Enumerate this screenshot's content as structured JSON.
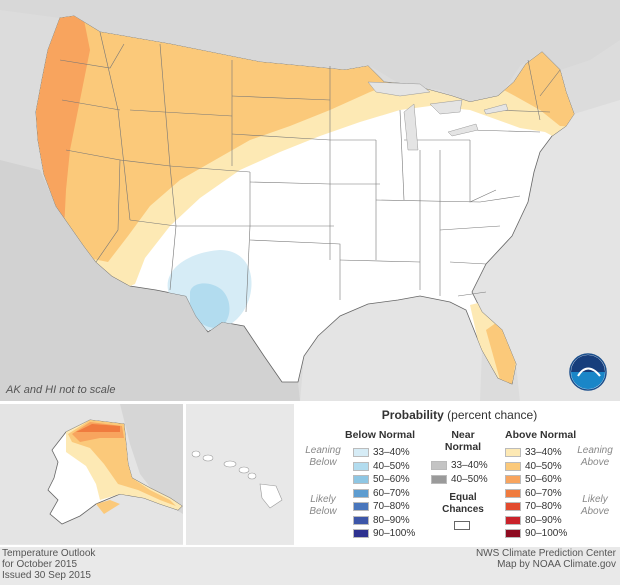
{
  "map": {
    "scale_note": "AK and HI not to scale",
    "logo_text": "NOAA"
  },
  "legend": {
    "title_bold": "Probability",
    "title_rest": " (percent chance)",
    "below": {
      "heading": "Below Normal",
      "leaning": [
        "Leaning",
        "Below"
      ],
      "likely": [
        "Likely",
        "Below"
      ],
      "bins": [
        {
          "label": "33–40%",
          "color": "#d6ecf6"
        },
        {
          "label": "40–50%",
          "color": "#b2dcef"
        },
        {
          "label": "50–60%",
          "color": "#8ec6e3"
        },
        {
          "label": "60–70%",
          "color": "#5d9cd0"
        },
        {
          "label": "70–80%",
          "color": "#4976bc"
        },
        {
          "label": "80–90%",
          "color": "#3d56a8"
        },
        {
          "label": "90–100%",
          "color": "#2e3290"
        }
      ]
    },
    "near": {
      "heading": [
        "Near",
        "Normal"
      ],
      "bins": [
        {
          "label": "33–40%",
          "color": "#c4c4c4"
        },
        {
          "label": "40–50%",
          "color": "#9a9a9a"
        }
      ]
    },
    "equal_chances": [
      "Equal",
      "Chances"
    ],
    "above": {
      "heading": "Above Normal",
      "leaning": [
        "Leaning",
        "Above"
      ],
      "likely": [
        "Likely",
        "Above"
      ],
      "bins": [
        {
          "label": "33–40%",
          "color": "#fde9b4"
        },
        {
          "label": "40–50%",
          "color": "#fbc97a"
        },
        {
          "label": "50–60%",
          "color": "#f8a45e"
        },
        {
          "label": "60–70%",
          "color": "#f07b3e"
        },
        {
          "label": "70–80%",
          "color": "#e24a2e"
        },
        {
          "label": "80–90%",
          "color": "#c9222a"
        },
        {
          "label": "90–100%",
          "color": "#8e0b20"
        }
      ]
    }
  },
  "footer": {
    "left": [
      "Temperature Outlook",
      "for October 2015",
      "Issued 30 Sep 2015"
    ],
    "right": [
      "NWS Climate Prediction Center",
      "Map by NOAA Climate.gov"
    ]
  }
}
